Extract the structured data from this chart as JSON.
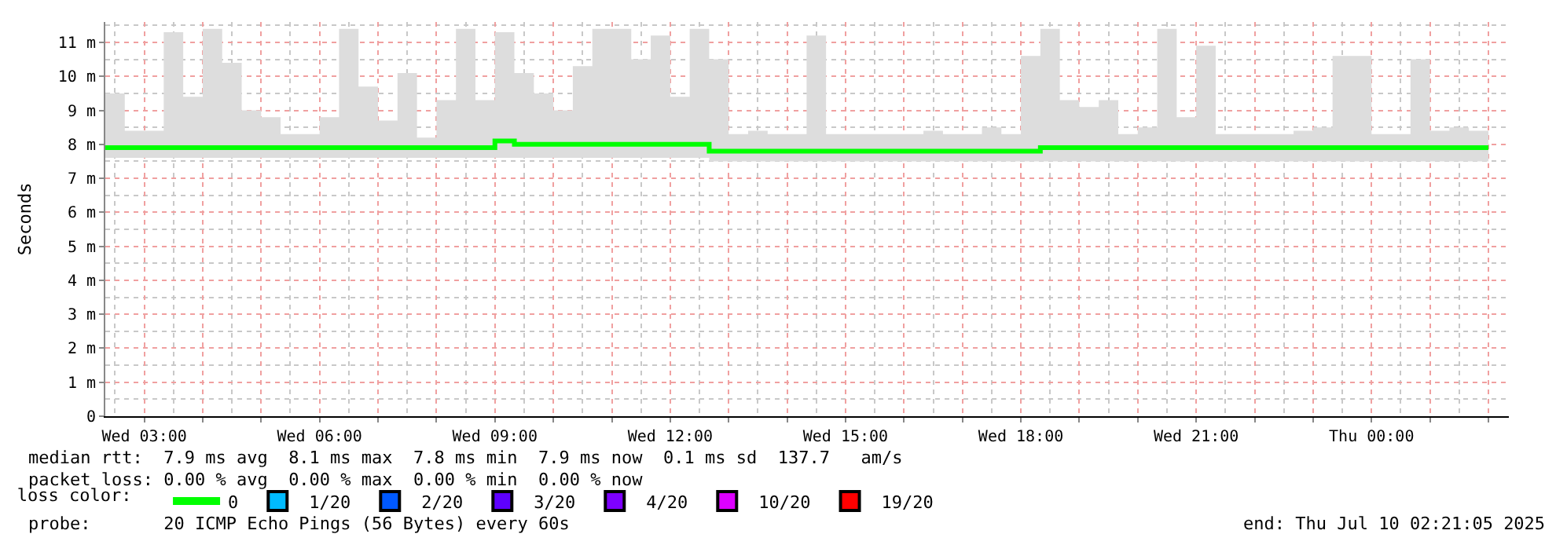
{
  "chart_data": {
    "type": "step",
    "ylabel": "Seconds",
    "legend_title": "loss color:",
    "legend": "bottom",
    "grid": true,
    "line_style": "solid",
    "marker": "none",
    "xlim": [
      "2025-07-09T02:20",
      "2025-07-10T02:21"
    ],
    "xticks": [
      {
        "value": "2025-07-09T03:00",
        "label": "Wed 03:00"
      },
      {
        "value": "2025-07-09T04:00",
        "label": null
      },
      {
        "value": "2025-07-09T05:00",
        "label": null
      },
      {
        "value": "2025-07-09T06:00",
        "label": "Wed 06:00"
      },
      {
        "value": "2025-07-09T07:00",
        "label": null
      },
      {
        "value": "2025-07-09T08:00",
        "label": null
      },
      {
        "value": "2025-07-09T09:00",
        "label": "Wed 09:00"
      },
      {
        "value": "2025-07-09T10:00",
        "label": null
      },
      {
        "value": "2025-07-09T11:00",
        "label": null
      },
      {
        "value": "2025-07-09T12:00",
        "label": "Wed 12:00"
      },
      {
        "value": "2025-07-09T13:00",
        "label": null
      },
      {
        "value": "2025-07-09T14:00",
        "label": null
      },
      {
        "value": "2025-07-09T15:00",
        "label": "Wed 15:00"
      },
      {
        "value": "2025-07-09T16:00",
        "label": null
      },
      {
        "value": "2025-07-09T17:00",
        "label": null
      },
      {
        "value": "2025-07-09T18:00",
        "label": "Wed 18:00"
      },
      {
        "value": "2025-07-09T19:00",
        "label": null
      },
      {
        "value": "2025-07-09T20:00",
        "label": null
      },
      {
        "value": "2025-07-09T21:00",
        "label": "Wed 21:00"
      },
      {
        "value": "2025-07-09T22:00",
        "label": null
      },
      {
        "value": "2025-07-09T23:00",
        "label": null
      },
      {
        "value": "2025-07-10T00:00",
        "label": "Thu 00:00"
      },
      {
        "value": "2025-07-10T01:00",
        "label": null
      },
      {
        "value": "2025-07-10T02:00",
        "label": null
      }
    ],
    "ylim": [
      0,
      11.6
    ],
    "yticks": [
      0,
      {
        "value": 1,
        "label": "1 m"
      },
      {
        "value": 2,
        "label": "2 m"
      },
      {
        "value": 3,
        "label": "3 m"
      },
      {
        "value": 4,
        "label": "4 m"
      },
      {
        "value": 5,
        "label": "5 m"
      },
      {
        "value": 6,
        "label": "6 m"
      },
      {
        "value": 7,
        "label": "7 m"
      },
      {
        "value": 8,
        "label": "8 m"
      },
      {
        "value": 9,
        "label": "9 m"
      },
      {
        "value": 10,
        "label": "10 m"
      },
      {
        "value": 11,
        "label": "11 m"
      }
    ],
    "x": [
      "2025-07-09T02:20",
      "2025-07-09T02:40",
      "2025-07-09T03:00",
      "2025-07-09T03:20",
      "2025-07-09T03:40",
      "2025-07-09T04:00",
      "2025-07-09T04:20",
      "2025-07-09T04:40",
      "2025-07-09T05:00",
      "2025-07-09T05:20",
      "2025-07-09T05:40",
      "2025-07-09T06:00",
      "2025-07-09T06:20",
      "2025-07-09T06:40",
      "2025-07-09T07:00",
      "2025-07-09T07:20",
      "2025-07-09T07:40",
      "2025-07-09T08:00",
      "2025-07-09T08:20",
      "2025-07-09T08:40",
      "2025-07-09T09:00",
      "2025-07-09T09:20",
      "2025-07-09T09:40",
      "2025-07-09T10:00",
      "2025-07-09T10:20",
      "2025-07-09T10:40",
      "2025-07-09T11:00",
      "2025-07-09T11:20",
      "2025-07-09T11:40",
      "2025-07-09T12:00",
      "2025-07-09T12:20",
      "2025-07-09T12:40",
      "2025-07-09T13:00",
      "2025-07-09T13:20",
      "2025-07-09T13:40",
      "2025-07-09T14:00",
      "2025-07-09T14:20",
      "2025-07-09T14:40",
      "2025-07-09T15:00",
      "2025-07-09T15:20",
      "2025-07-09T15:40",
      "2025-07-09T16:00",
      "2025-07-09T16:20",
      "2025-07-09T16:40",
      "2025-07-09T17:00",
      "2025-07-09T17:20",
      "2025-07-09T17:40",
      "2025-07-09T18:00",
      "2025-07-09T18:20",
      "2025-07-09T18:40",
      "2025-07-09T19:00",
      "2025-07-09T19:20",
      "2025-07-09T19:40",
      "2025-07-09T20:00",
      "2025-07-09T20:20",
      "2025-07-09T20:40",
      "2025-07-09T21:00",
      "2025-07-09T21:20",
      "2025-07-09T21:40",
      "2025-07-09T22:00",
      "2025-07-09T22:20",
      "2025-07-09T22:40",
      "2025-07-09T23:00",
      "2025-07-09T23:20",
      "2025-07-09T23:40",
      "2025-07-10T00:00",
      "2025-07-10T00:20",
      "2025-07-10T00:40",
      "2025-07-10T01:00",
      "2025-07-10T01:20",
      "2025-07-10T01:40",
      "2025-07-10T02:00"
    ],
    "series": [
      {
        "name": "0",
        "color": "#00ff00",
        "values": [
          7.9,
          7.9,
          7.9,
          7.9,
          7.9,
          7.9,
          7.9,
          7.9,
          7.9,
          7.9,
          7.9,
          7.9,
          7.9,
          7.9,
          7.9,
          7.9,
          7.9,
          7.9,
          7.9,
          7.9,
          8.1,
          8.0,
          8.0,
          8.0,
          8.0,
          8.0,
          8.0,
          8.0,
          8.0,
          8.0,
          8.0,
          7.8,
          7.8,
          7.8,
          7.8,
          7.8,
          7.8,
          7.8,
          7.8,
          7.8,
          7.8,
          7.8,
          7.8,
          7.8,
          7.8,
          7.8,
          7.8,
          7.8,
          7.9,
          7.9,
          7.9,
          7.9,
          7.9,
          7.9,
          7.9,
          7.9,
          7.9,
          7.9,
          7.9,
          7.9,
          7.9,
          7.9,
          7.9,
          7.9,
          7.9,
          7.9,
          7.9,
          7.9,
          7.9,
          7.9,
          7.9,
          7.9
        ],
        "lower": [
          7.6,
          7.6,
          7.6,
          7.6,
          7.6,
          7.6,
          7.6,
          7.6,
          7.6,
          7.6,
          7.6,
          7.6,
          7.6,
          7.6,
          7.6,
          7.6,
          7.6,
          7.6,
          7.6,
          7.6,
          7.6,
          7.6,
          7.6,
          7.6,
          7.6,
          7.6,
          7.6,
          7.6,
          7.6,
          7.6,
          7.6,
          7.5,
          7.5,
          7.5,
          7.5,
          7.5,
          7.5,
          7.5,
          7.5,
          7.5,
          7.5,
          7.5,
          7.5,
          7.5,
          7.5,
          7.5,
          7.5,
          7.5,
          7.5,
          7.5,
          7.5,
          7.5,
          7.5,
          7.5,
          7.5,
          7.5,
          7.5,
          7.5,
          7.5,
          7.5,
          7.5,
          7.5,
          7.5,
          7.5,
          7.5,
          7.5,
          7.5,
          7.5,
          7.5,
          7.5,
          7.5,
          7.5
        ],
        "upper": [
          9.5,
          8.4,
          8.4,
          11.3,
          9.4,
          11.4,
          10.4,
          9.0,
          8.8,
          8.3,
          8.3,
          8.8,
          11.4,
          9.7,
          8.7,
          10.1,
          8.2,
          9.3,
          11.4,
          9.3,
          11.3,
          10.1,
          9.5,
          9.0,
          10.3,
          11.4,
          11.4,
          10.5,
          11.2,
          9.4,
          11.4,
          10.5,
          8.3,
          8.4,
          8.3,
          8.3,
          11.2,
          8.3,
          8.3,
          8.3,
          8.3,
          8.3,
          8.4,
          8.3,
          8.3,
          8.5,
          8.3,
          10.6,
          11.4,
          9.3,
          9.1,
          9.3,
          8.3,
          8.5,
          11.4,
          8.8,
          10.9,
          8.3,
          8.3,
          8.3,
          8.3,
          8.4,
          8.5,
          10.6,
          10.6,
          8.3,
          8.3,
          10.5,
          8.4,
          8.5,
          8.4,
          8.4
        ]
      },
      {
        "name": "1/20",
        "color": "#00bbff",
        "values": [
          null,
          null,
          null,
          null,
          null,
          null,
          null,
          null,
          null,
          null,
          null,
          null,
          null,
          null,
          null,
          null,
          null,
          null,
          null,
          null,
          null,
          null,
          null,
          null,
          null,
          null,
          null,
          null,
          null,
          null,
          null,
          null,
          null,
          null,
          null,
          null,
          null,
          null,
          null,
          null,
          null,
          null,
          null,
          null,
          null,
          null,
          null,
          null,
          null,
          null,
          null,
          null,
          null,
          null,
          null,
          null,
          null,
          null,
          null,
          null,
          null,
          null,
          null,
          null,
          null,
          null,
          null,
          null,
          null,
          null,
          null,
          null
        ]
      },
      {
        "name": "2/20",
        "color": "#0059ff",
        "values": [
          null,
          null,
          null,
          null,
          null,
          null,
          null,
          null,
          null,
          null,
          null,
          null,
          null,
          null,
          null,
          null,
          null,
          null,
          null,
          null,
          null,
          null,
          null,
          null,
          null,
          null,
          null,
          null,
          null,
          null,
          null,
          null,
          null,
          null,
          null,
          null,
          null,
          null,
          null,
          null,
          null,
          null,
          null,
          null,
          null,
          null,
          null,
          null,
          null,
          null,
          null,
          null,
          null,
          null,
          null,
          null,
          null,
          null,
          null,
          null,
          null,
          null,
          null,
          null,
          null,
          null,
          null,
          null,
          null,
          null,
          null,
          null
        ]
      },
      {
        "name": "3/20",
        "color": "#5e00ff",
        "values": [
          null,
          null,
          null,
          null,
          null,
          null,
          null,
          null,
          null,
          null,
          null,
          null,
          null,
          null,
          null,
          null,
          null,
          null,
          null,
          null,
          null,
          null,
          null,
          null,
          null,
          null,
          null,
          null,
          null,
          null,
          null,
          null,
          null,
          null,
          null,
          null,
          null,
          null,
          null,
          null,
          null,
          null,
          null,
          null,
          null,
          null,
          null,
          null,
          null,
          null,
          null,
          null,
          null,
          null,
          null,
          null,
          null,
          null,
          null,
          null,
          null,
          null,
          null,
          null,
          null,
          null,
          null,
          null,
          null,
          null,
          null,
          null
        ]
      },
      {
        "name": "4/20",
        "color": "#7e00ff",
        "values": [
          null,
          null,
          null,
          null,
          null,
          null,
          null,
          null,
          null,
          null,
          null,
          null,
          null,
          null,
          null,
          null,
          null,
          null,
          null,
          null,
          null,
          null,
          null,
          null,
          null,
          null,
          null,
          null,
          null,
          null,
          null,
          null,
          null,
          null,
          null,
          null,
          null,
          null,
          null,
          null,
          null,
          null,
          null,
          null,
          null,
          null,
          null,
          null,
          null,
          null,
          null,
          null,
          null,
          null,
          null,
          null,
          null,
          null,
          null,
          null,
          null,
          null,
          null,
          null,
          null,
          null,
          null,
          null,
          null,
          null,
          null,
          null
        ]
      },
      {
        "name": "10/20",
        "color": "#dd00ff",
        "values": [
          null,
          null,
          null,
          null,
          null,
          null,
          null,
          null,
          null,
          null,
          null,
          null,
          null,
          null,
          null,
          null,
          null,
          null,
          null,
          null,
          null,
          null,
          null,
          null,
          null,
          null,
          null,
          null,
          null,
          null,
          null,
          null,
          null,
          null,
          null,
          null,
          null,
          null,
          null,
          null,
          null,
          null,
          null,
          null,
          null,
          null,
          null,
          null,
          null,
          null,
          null,
          null,
          null,
          null,
          null,
          null,
          null,
          null,
          null,
          null,
          null,
          null,
          null,
          null,
          null,
          null,
          null,
          null,
          null,
          null,
          null,
          null
        ]
      },
      {
        "name": "19/20",
        "color": "#ff0000",
        "values": [
          null,
          null,
          null,
          null,
          null,
          null,
          null,
          null,
          null,
          null,
          null,
          null,
          null,
          null,
          null,
          null,
          null,
          null,
          null,
          null,
          null,
          null,
          null,
          null,
          null,
          null,
          null,
          null,
          null,
          null,
          null,
          null,
          null,
          null,
          null,
          null,
          null,
          null,
          null,
          null,
          null,
          null,
          null,
          null,
          null,
          null,
          null,
          null,
          null,
          null,
          null,
          null,
          null,
          null,
          null,
          null,
          null,
          null,
          null,
          null,
          null,
          null,
          null,
          null,
          null,
          null,
          null,
          null,
          null,
          null,
          null,
          null
        ]
      }
    ],
    "annotations": [
      "median rtt:  7.9 ms avg  8.1 ms max  7.8 ms min  7.9 ms now  0.1 ms sd  137.7   am/s",
      "packet loss: 0.00 % avg  0.00 % max  0.00 % min  0.00 % now",
      "probe:       20 ICMP Echo Pings (56 Bytes) every 60s",
      "end: Thu Jul 10 02:21:05 2025"
    ]
  }
}
